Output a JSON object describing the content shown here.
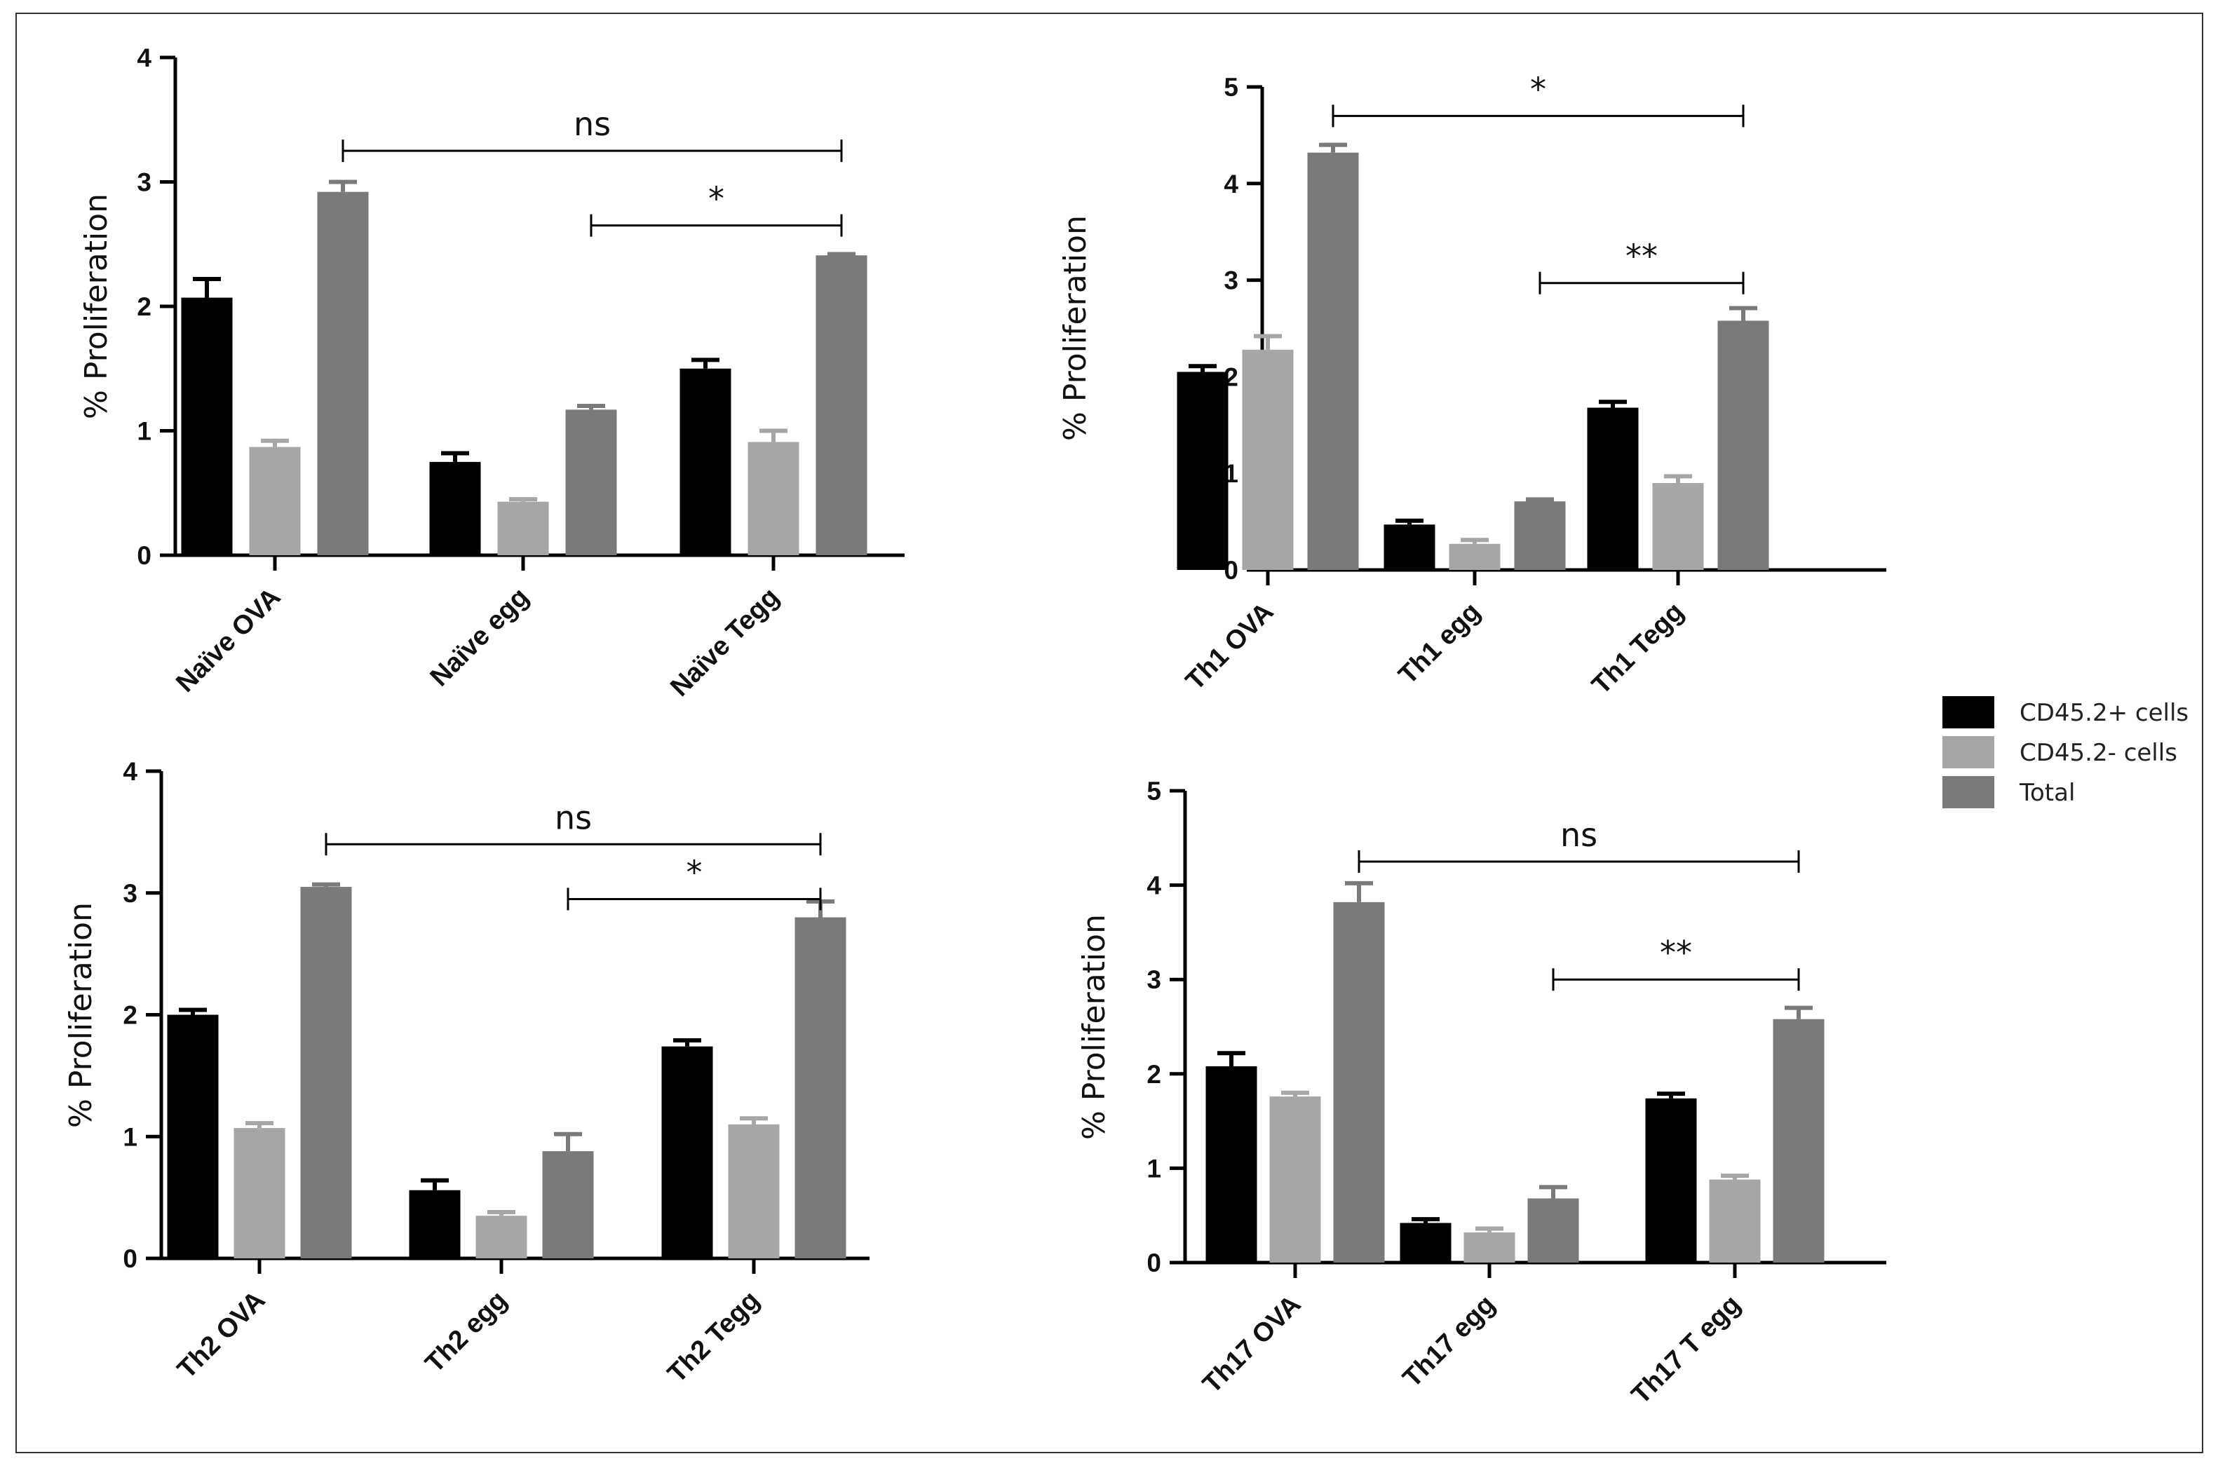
{
  "legend": [
    {
      "name": "CD45.2+ cells",
      "color": "#000000"
    },
    {
      "name": "CD45.2- cells",
      "color": "#a6a6a8"
    },
    {
      "name": "Total",
      "color": "#7a7a7a"
    }
  ],
  "chart_data": [
    {
      "type": "bar",
      "ylabel": "% Proliferation",
      "ylim": [
        0,
        4
      ],
      "yticks": [
        0,
        1,
        2,
        3,
        4
      ],
      "categories": [
        "Naïve OVA",
        "Naïve egg",
        "Naïve Tegg"
      ],
      "series": [
        {
          "name": "CD45.2+ cells",
          "values": [
            2.07,
            0.75,
            1.5
          ],
          "errors": [
            0.15,
            0.07,
            0.07
          ]
        },
        {
          "name": "CD45.2- cells",
          "values": [
            0.87,
            0.43,
            0.91
          ],
          "errors": [
            0.05,
            0.02,
            0.09
          ]
        },
        {
          "name": "Total",
          "values": [
            2.92,
            1.17,
            2.41
          ],
          "errors": [
            0.08,
            0.03,
            0.01
          ]
        }
      ],
      "significance": [
        {
          "label": "ns",
          "from": [
            0,
            2
          ],
          "to": [
            2,
            2
          ],
          "level": 3.25
        },
        {
          "label": "*",
          "from": [
            1,
            2
          ],
          "to": [
            2,
            2
          ],
          "level": 2.65
        }
      ]
    },
    {
      "type": "bar",
      "ylabel": "% Proliferation",
      "ylim": [
        0,
        5
      ],
      "yticks": [
        0,
        1,
        2,
        3,
        4,
        5
      ],
      "categories": [
        "Th1 OVA",
        "Th1 egg",
        "Th1 Tegg"
      ],
      "series": [
        {
          "name": "CD45.2+ cells",
          "values": [
            2.05,
            0.47,
            1.68
          ],
          "errors": [
            0.06,
            0.04,
            0.06
          ]
        },
        {
          "name": "CD45.2- cells",
          "values": [
            2.28,
            0.27,
            0.9
          ],
          "errors": [
            0.14,
            0.04,
            0.07
          ]
        },
        {
          "name": "Total",
          "values": [
            4.32,
            0.71,
            2.58
          ],
          "errors": [
            0.08,
            0.02,
            0.13
          ]
        }
      ],
      "significance": [
        {
          "label": "*",
          "from": [
            0,
            2
          ],
          "to": [
            2,
            2
          ],
          "level": 4.7
        },
        {
          "label": "**",
          "from": [
            1,
            2
          ],
          "to": [
            2,
            2
          ],
          "level": 2.97
        }
      ]
    },
    {
      "type": "bar",
      "ylabel": "% Proliferation",
      "ylim": [
        0,
        4
      ],
      "yticks": [
        0,
        1,
        2,
        3,
        4
      ],
      "categories": [
        "Th2 OVA",
        "Th2 egg",
        "Th2 Tegg"
      ],
      "series": [
        {
          "name": "CD45.2+ cells",
          "values": [
            2.0,
            0.56,
            1.74
          ],
          "errors": [
            0.04,
            0.08,
            0.05
          ]
        },
        {
          "name": "CD45.2- cells",
          "values": [
            1.07,
            0.35,
            1.1
          ],
          "errors": [
            0.04,
            0.03,
            0.05
          ]
        },
        {
          "name": "Total",
          "values": [
            3.05,
            0.88,
            2.8
          ],
          "errors": [
            0.02,
            0.14,
            0.13
          ]
        }
      ],
      "significance": [
        {
          "label": "ns",
          "from": [
            0,
            2
          ],
          "to": [
            2,
            2
          ],
          "level": 3.4
        },
        {
          "label": "*",
          "from": [
            1,
            2
          ],
          "to": [
            2,
            2
          ],
          "level": 2.95
        }
      ]
    },
    {
      "type": "bar",
      "ylabel": "% Proliferation",
      "ylim": [
        0,
        5
      ],
      "yticks": [
        0,
        1,
        2,
        3,
        4,
        5
      ],
      "categories": [
        "Th17 OVA",
        "Th17 egg",
        "Th17 T egg"
      ],
      "series": [
        {
          "name": "CD45.2+ cells",
          "values": [
            2.08,
            0.42,
            1.74
          ],
          "errors": [
            0.14,
            0.04,
            0.05
          ]
        },
        {
          "name": "CD45.2- cells",
          "values": [
            1.76,
            0.32,
            0.88
          ],
          "errors": [
            0.04,
            0.04,
            0.04
          ]
        },
        {
          "name": "Total",
          "values": [
            3.82,
            0.68,
            2.58
          ],
          "errors": [
            0.2,
            0.12,
            0.12
          ]
        }
      ],
      "significance": [
        {
          "label": "ns",
          "from": [
            0,
            2
          ],
          "to": [
            2,
            2
          ],
          "level": 4.25
        },
        {
          "label": "**",
          "from": [
            1,
            2
          ],
          "to": [
            2,
            2
          ],
          "level": 3.0
        }
      ]
    }
  ]
}
